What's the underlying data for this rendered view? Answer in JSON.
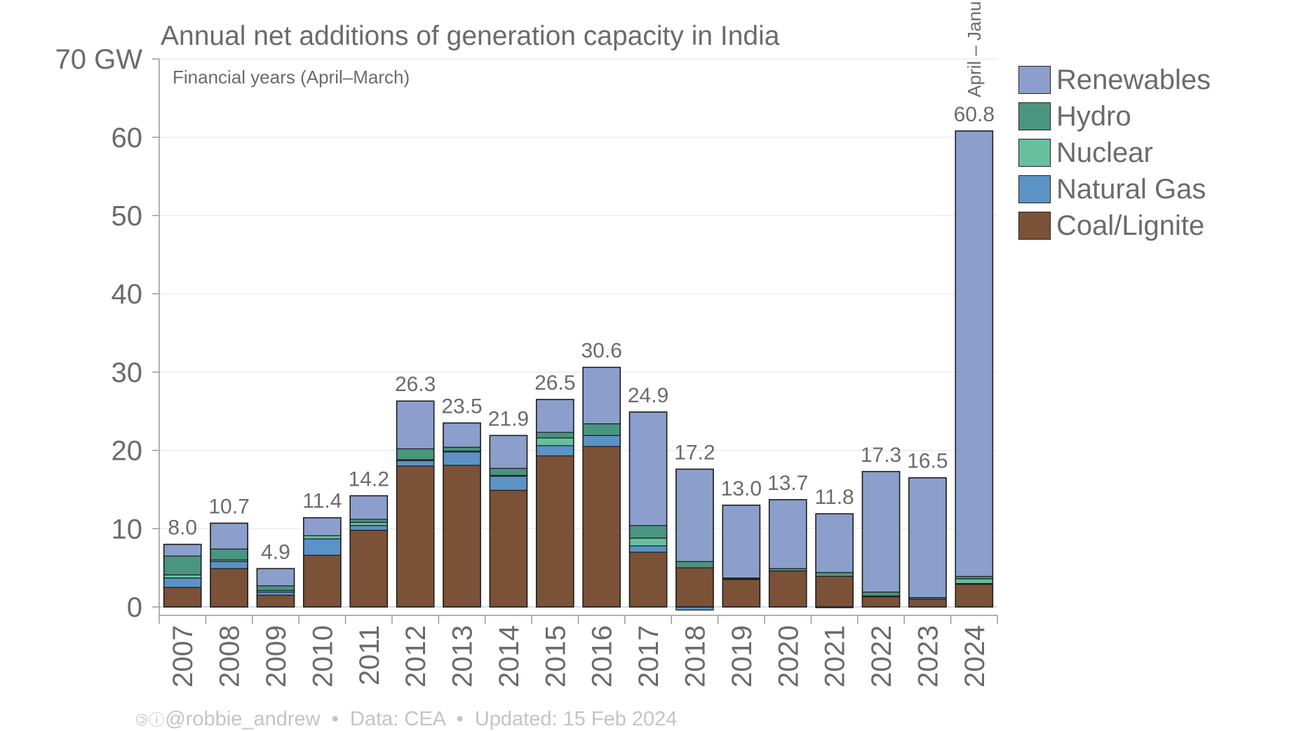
{
  "chart_data": {
    "type": "bar",
    "stacked": true,
    "title": "Annual net additions of generation capacity in India",
    "subtitle": "Financial years (April–March)",
    "ylabel_top": "70 GW",
    "ylim": [
      0,
      70
    ],
    "yticks": [
      "0",
      "10",
      "20",
      "30",
      "40",
      "50",
      "60",
      "70 GW"
    ],
    "grid": true,
    "legend_position": "top-right",
    "categories": [
      "2007",
      "2008",
      "2009",
      "2010",
      "2011",
      "2012",
      "2013",
      "2014",
      "2015",
      "2016",
      "2017",
      "2018",
      "2019",
      "2020",
      "2021",
      "2022",
      "2023",
      "2024"
    ],
    "series": [
      {
        "name": "Coal/Lignite",
        "color": "#7b5238",
        "values": [
          2.5,
          4.9,
          1.5,
          6.6,
          9.8,
          18.0,
          18.1,
          14.9,
          19.3,
          20.5,
          7.0,
          5.0,
          3.5,
          4.6,
          3.9,
          1.3,
          1.0,
          2.9
        ]
      },
      {
        "name": "Natural Gas",
        "color": "#5b93c6",
        "values": [
          1.2,
          0.9,
          0.4,
          2.1,
          0.6,
          0.7,
          1.7,
          1.8,
          1.3,
          1.4,
          0.8,
          -0.4,
          0.1,
          0.0,
          -0.1,
          0.1,
          0.0,
          0.1
        ]
      },
      {
        "name": "Nuclear",
        "color": "#66c0a0",
        "values": [
          0.4,
          0.2,
          0.2,
          0.4,
          0.4,
          0.1,
          0.1,
          0.1,
          1.0,
          0.0,
          1.0,
          0.0,
          0.0,
          0.0,
          0.0,
          0.0,
          0.0,
          0.6
        ]
      },
      {
        "name": "Hydro",
        "color": "#4a9580",
        "values": [
          2.4,
          1.4,
          0.6,
          0.0,
          0.4,
          1.4,
          0.5,
          0.9,
          0.7,
          1.5,
          1.6,
          0.8,
          0.1,
          0.3,
          0.5,
          0.5,
          0.2,
          0.3
        ]
      },
      {
        "name": "Renewables",
        "color": "#8c9fcc",
        "values": [
          1.5,
          3.3,
          2.2,
          2.3,
          3.0,
          6.1,
          3.1,
          4.2,
          4.2,
          7.2,
          14.5,
          11.8,
          9.3,
          8.8,
          7.5,
          15.4,
          15.3,
          56.9
        ]
      }
    ],
    "totals": [
      "8.0",
      "10.7",
      "4.9",
      "11.4",
      "14.2",
      "26.3",
      "23.5",
      "21.9",
      "26.5",
      "30.6",
      "24.9",
      "17.2",
      "13.0",
      "13.7",
      "11.8",
      "17.3",
      "16.5",
      "60.8"
    ],
    "annotation": "April – Janu"
  },
  "legend": [
    {
      "label": "Renewables",
      "color": "#8c9fcc"
    },
    {
      "label": "Hydro",
      "color": "#4a9580"
    },
    {
      "label": "Nuclear",
      "color": "#66c0a0"
    },
    {
      "label": "Natural Gas",
      "color": "#5b93c6"
    },
    {
      "label": "Coal/Lignite",
      "color": "#7b5238"
    }
  ],
  "footer": {
    "icons": "🄯ⓘ",
    "handle": "@robbie_andrew",
    "separator": "•",
    "source": "Data: CEA",
    "updated": "Updated: 15 Feb 2024"
  }
}
